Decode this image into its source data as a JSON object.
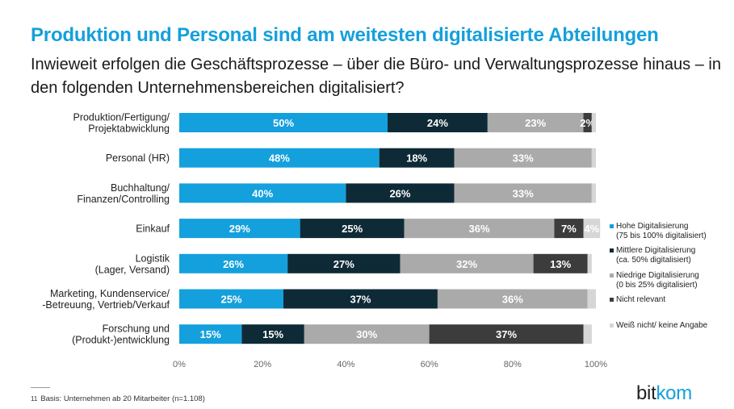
{
  "header": {
    "title": "Produktion und Personal sind am weitesten digitalisierte Abteilungen",
    "subtitle": "Inwieweit erfolgen die Geschäftsprozesse – über die Büro- und Verwaltungsprozesse hinaus – in den folgenden Unternehmensbereichen digitalisiert?"
  },
  "footer": {
    "number": "11",
    "note": "Basis: Unternehmen ab 20 Mitarbeiter (n=1.108)",
    "logo_part1": "bit",
    "logo_part2": "kom"
  },
  "chart_data": {
    "type": "bar",
    "orientation": "horizontal",
    "stacked": true,
    "categories": [
      [
        "Produktion/Fertigung/",
        "Projektabwicklung"
      ],
      [
        "Personal (HR)"
      ],
      [
        "Buchhaltung/",
        "Finanzen/Controlling"
      ],
      [
        "Einkauf"
      ],
      [
        "Logistik",
        "(Lager, Versand)"
      ],
      [
        "Marketing, Kundenservice/",
        "-Betreuung, Vertrieb/Verkauf"
      ],
      [
        "Forschung und",
        "(Produkt-)entwicklung"
      ]
    ],
    "series": [
      {
        "name": "Hohe Digitalisierung",
        "name_sub": "(75 bis 100% digitalisiert)",
        "color": "#14a0dc",
        "label_color": "#ffffff",
        "values": [
          50,
          48,
          40,
          29,
          26,
          25,
          15
        ]
      },
      {
        "name": "Mittlere Digitalisierung",
        "name_sub": "(ca. 50% digitalisiert)",
        "color": "#0f2a37",
        "label_color": "#ffffff",
        "values": [
          24,
          18,
          26,
          25,
          27,
          37,
          15
        ]
      },
      {
        "name": "Niedrige Digitalisierung",
        "name_sub": "(0 bis 25% digitalisiert)",
        "color": "#aaaaaa",
        "label_color": "#ffffff",
        "values": [
          23,
          33,
          33,
          36,
          32,
          36,
          30
        ]
      },
      {
        "name": "Nicht relevant",
        "name_sub": "",
        "color": "#3c3c3c",
        "label_color": "#ffffff",
        "values": [
          2,
          0,
          0,
          7,
          13,
          0,
          37
        ]
      },
      {
        "name": "Weiß nicht/ keine Angabe",
        "name_sub": "",
        "color": "#d6d6d6",
        "label_color": "#ffffff",
        "values": [
          1,
          1,
          1,
          4,
          1,
          2,
          2
        ]
      }
    ],
    "value_labels": [
      [
        "50%",
        "24%",
        "23%",
        "2%",
        ""
      ],
      [
        "48%",
        "18%",
        "33%",
        "",
        ""
      ],
      [
        "40%",
        "26%",
        "33%",
        "",
        ""
      ],
      [
        "29%",
        "25%",
        "36%",
        "7%",
        "4%"
      ],
      [
        "26%",
        "27%",
        "32%",
        "13%",
        ""
      ],
      [
        "25%",
        "37%",
        "36%",
        "",
        ""
      ],
      [
        "15%",
        "15%",
        "30%",
        "37%",
        ""
      ]
    ],
    "xlim": [
      0,
      100
    ],
    "xticks": [
      "0%",
      "20%",
      "40%",
      "60%",
      "80%",
      "100%"
    ],
    "legend_position": "right",
    "grid": false
  }
}
